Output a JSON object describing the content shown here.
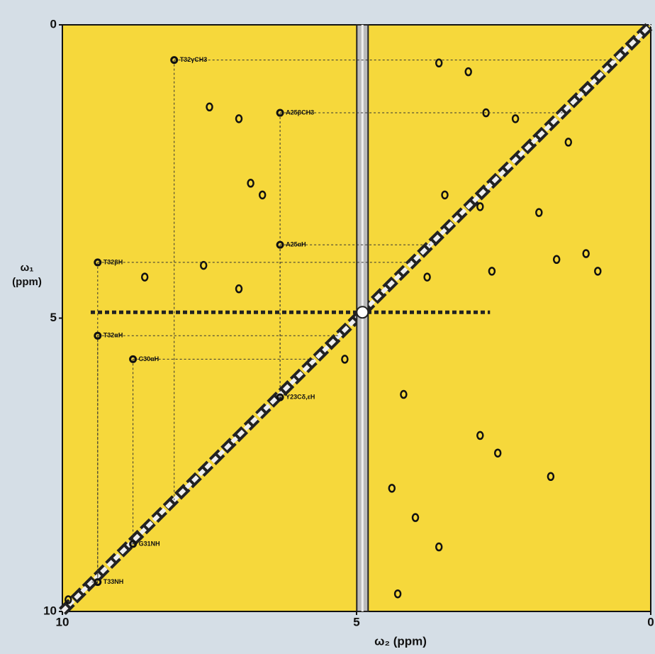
{
  "chart_data": {
    "type": "nmr2d",
    "x_label": "ω₂ (ppm)",
    "y_label": "ω₁ (ppm)",
    "xlim": [
      10,
      0
    ],
    "ylim": [
      0,
      10
    ],
    "xticks": [
      10,
      5,
      0
    ],
    "yticks": [
      0,
      5,
      10
    ],
    "water_ppm": 4.9,
    "plot_color": "#f6d83b",
    "peak_color": "#111111",
    "peaks": [
      {
        "label": "T32γCH3",
        "x": 8.1,
        "y": 0.6
      },
      {
        "label": "A25βCH3",
        "x": 6.3,
        "y": 1.5
      },
      {
        "label": "A25αH",
        "x": 6.3,
        "y": 3.75
      },
      {
        "label": "T32βH",
        "x": 9.4,
        "y": 4.05
      },
      {
        "label": "T32αH",
        "x": 9.4,
        "y": 5.3
      },
      {
        "label": "C30αH",
        "x": 8.8,
        "y": 5.7
      },
      {
        "label": "Y23Cδ,εH",
        "x": 6.3,
        "y": 6.35
      },
      {
        "label": "G31NH",
        "x": 8.8,
        "y": 8.85
      },
      {
        "label": "T33NH",
        "x": 9.4,
        "y": 9.5
      }
    ],
    "cross_peaks": {
      "x": [
        3.6,
        3.1,
        2.8,
        2.3,
        1.4,
        3.5,
        2.9,
        1.9,
        1.1,
        0.9,
        3.8,
        2.7,
        1.6,
        4.2,
        4.4,
        7.5,
        7.0,
        6.8,
        6.6,
        7.6,
        8.6,
        7.0,
        5.2,
        4.0,
        2.9,
        2.6,
        4.3,
        3.6,
        1.7,
        9.9
      ],
      "y": [
        0.65,
        0.8,
        1.5,
        1.6,
        2.0,
        2.9,
        3.1,
        3.2,
        3.9,
        4.2,
        4.3,
        4.2,
        4.0,
        6.3,
        7.9,
        1.4,
        1.6,
        2.7,
        2.9,
        4.1,
        4.3,
        4.5,
        5.7,
        8.4,
        7.0,
        7.3,
        9.7,
        8.9,
        7.7,
        9.8
      ]
    }
  }
}
